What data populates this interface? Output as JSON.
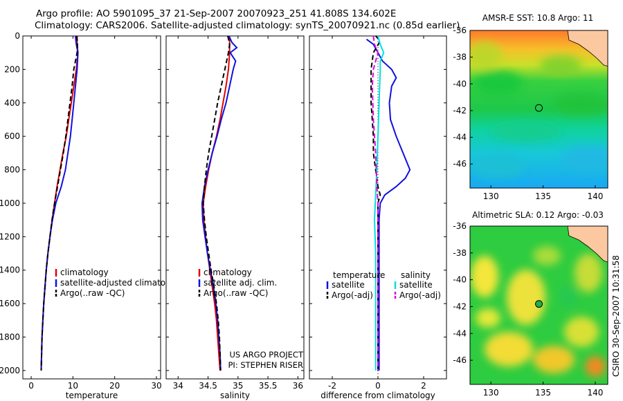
{
  "title": {
    "line1": "Argo profile: AO 5901095_37 21-Sep-2007 20070923_251 41.808S 134.602E",
    "line2": "Climatology: CARS2006. Satellite-adjusted climatology: synTS_20070921.nc (0.85d earlier)"
  },
  "side_label": "CSIRO 30-Sep-2007 10:31:58",
  "colors": {
    "red": "#e00000",
    "blue": "#1010e0",
    "black": "#000000",
    "cyan": "#00e0e0",
    "magenta": "#e000e0"
  },
  "chart_data": [
    {
      "type": "line",
      "xlabel": "temperature",
      "xlim": [
        -2,
        31
      ],
      "ylim": [
        0,
        2050
      ],
      "y_reversed": true,
      "xticks": [
        0,
        10,
        20,
        30
      ],
      "yticks": [
        0,
        200,
        400,
        600,
        800,
        1000,
        1200,
        1400,
        1600,
        1800,
        2000
      ],
      "series": [
        {
          "name": "climatology",
          "color": "red",
          "dash": "solid",
          "points": [
            [
              11,
              0
            ],
            [
              11,
              50
            ],
            [
              11.2,
              100
            ],
            [
              10.8,
              200
            ],
            [
              10.2,
              300
            ],
            [
              9.6,
              400
            ],
            [
              9.0,
              500
            ],
            [
              8.4,
              600
            ],
            [
              7.6,
              700
            ],
            [
              6.9,
              800
            ],
            [
              6.2,
              900
            ],
            [
              5.6,
              1000
            ],
            [
              5.0,
              1100
            ],
            [
              4.5,
              1200
            ],
            [
              4.0,
              1300
            ],
            [
              3.6,
              1400
            ],
            [
              3.3,
              1500
            ],
            [
              3.0,
              1600
            ],
            [
              2.8,
              1700
            ],
            [
              2.6,
              1800
            ],
            [
              2.5,
              1900
            ],
            [
              2.4,
              2000
            ]
          ]
        },
        {
          "name": "satellite-adjusted climatology",
          "color": "blue",
          "dash": "solid",
          "points": [
            [
              10.6,
              0
            ],
            [
              10.8,
              50
            ],
            [
              11.2,
              100
            ],
            [
              11.0,
              200
            ],
            [
              10.6,
              300
            ],
            [
              10.2,
              400
            ],
            [
              9.8,
              500
            ],
            [
              9.4,
              600
            ],
            [
              8.8,
              700
            ],
            [
              8.2,
              800
            ],
            [
              7.2,
              900
            ],
            [
              5.9,
              1000
            ],
            [
              5.1,
              1100
            ],
            [
              4.5,
              1200
            ],
            [
              4.0,
              1300
            ],
            [
              3.6,
              1400
            ],
            [
              3.3,
              1500
            ],
            [
              3.0,
              1600
            ],
            [
              2.8,
              1700
            ],
            [
              2.6,
              1800
            ],
            [
              2.5,
              1900
            ],
            [
              2.4,
              2000
            ]
          ]
        },
        {
          "name": "Argo(..raw -QC)",
          "color": "black",
          "dash": "dashed",
          "points": [
            [
              10.9,
              0
            ],
            [
              11.1,
              50
            ],
            [
              11.0,
              100
            ],
            [
              10.2,
              200
            ],
            [
              9.8,
              300
            ],
            [
              9.3,
              400
            ],
            [
              8.8,
              500
            ],
            [
              8.3,
              600
            ],
            [
              7.7,
              700
            ],
            [
              7.0,
              800
            ],
            [
              6.3,
              900
            ],
            [
              5.6,
              1000
            ],
            [
              5.0,
              1100
            ],
            [
              4.5,
              1200
            ],
            [
              4.0,
              1300
            ],
            [
              3.6,
              1400
            ],
            [
              3.3,
              1500
            ],
            [
              3.0,
              1600
            ],
            [
              2.8,
              1700
            ],
            [
              2.6,
              1800
            ],
            [
              2.5,
              1900
            ],
            [
              2.4,
              2000
            ]
          ]
        }
      ],
      "legend": {
        "placement": "lower-center",
        "entries": [
          "climatology",
          "satellite-adjusted climatology",
          "Argo(..raw -QC)"
        ]
      }
    },
    {
      "type": "line",
      "xlabel": "salinity",
      "xlim": [
        33.8,
        36.1
      ],
      "ylim": [
        0,
        2050
      ],
      "y_reversed": true,
      "xticks": [
        34,
        34.5,
        35,
        35.5,
        36
      ],
      "series": [
        {
          "name": "climatology",
          "color": "red",
          "dash": "solid",
          "points": [
            [
              34.86,
              0
            ],
            [
              34.86,
              100
            ],
            [
              34.84,
              200
            ],
            [
              34.8,
              300
            ],
            [
              34.75,
              400
            ],
            [
              34.7,
              500
            ],
            [
              34.64,
              600
            ],
            [
              34.57,
              700
            ],
            [
              34.51,
              800
            ],
            [
              34.46,
              900
            ],
            [
              34.42,
              1000
            ],
            [
              34.43,
              1100
            ],
            [
              34.46,
              1200
            ],
            [
              34.49,
              1300
            ],
            [
              34.53,
              1400
            ],
            [
              34.57,
              1500
            ],
            [
              34.61,
              1600
            ],
            [
              34.64,
              1700
            ],
            [
              34.66,
              1800
            ],
            [
              34.68,
              1900
            ],
            [
              34.7,
              2000
            ]
          ]
        },
        {
          "name": "satellite adj. clim.",
          "color": "blue",
          "dash": "solid",
          "points": [
            [
              34.85,
              0
            ],
            [
              34.9,
              40
            ],
            [
              34.98,
              70
            ],
            [
              34.87,
              100
            ],
            [
              34.96,
              150
            ],
            [
              34.92,
              200
            ],
            [
              34.86,
              300
            ],
            [
              34.8,
              400
            ],
            [
              34.72,
              500
            ],
            [
              34.65,
              600
            ],
            [
              34.57,
              700
            ],
            [
              34.5,
              800
            ],
            [
              34.44,
              900
            ],
            [
              34.4,
              1000
            ],
            [
              34.41,
              1100
            ],
            [
              34.45,
              1200
            ],
            [
              34.49,
              1300
            ],
            [
              34.54,
              1400
            ],
            [
              34.59,
              1500
            ],
            [
              34.63,
              1600
            ],
            [
              34.66,
              1700
            ],
            [
              34.68,
              1800
            ],
            [
              34.7,
              1900
            ],
            [
              34.71,
              2000
            ]
          ]
        },
        {
          "name": "Argo(..raw -QC)",
          "color": "black",
          "dash": "dashed",
          "points": [
            [
              34.83,
              0
            ],
            [
              34.86,
              50
            ],
            [
              34.84,
              100
            ],
            [
              34.78,
              200
            ],
            [
              34.72,
              300
            ],
            [
              34.66,
              400
            ],
            [
              34.61,
              500
            ],
            [
              34.56,
              600
            ],
            [
              34.51,
              700
            ],
            [
              34.47,
              800
            ],
            [
              34.44,
              900
            ],
            [
              34.42,
              1000
            ],
            [
              34.44,
              1100
            ],
            [
              34.47,
              1200
            ],
            [
              34.51,
              1300
            ],
            [
              34.55,
              1400
            ],
            [
              34.6,
              1500
            ],
            [
              34.64,
              1600
            ],
            [
              34.67,
              1700
            ],
            [
              34.69,
              1800
            ],
            [
              34.7,
              1900
            ],
            [
              34.71,
              2000
            ]
          ]
        }
      ],
      "legend": {
        "placement": "lower-center",
        "entries": [
          "climatology",
          "satellite adj. clim.",
          "Argo(..raw -QC)"
        ]
      },
      "annotation": [
        "US ARGO PROJECT",
        "PI: STEPHEN RISER"
      ]
    },
    {
      "type": "line",
      "xlabel": "difference from climatology",
      "xlim": [
        -3,
        3
      ],
      "ylim": [
        0,
        2050
      ],
      "y_reversed": true,
      "xticks": [
        -2,
        0,
        2
      ],
      "series": [
        {
          "name": "temperature satellite",
          "color": "blue",
          "dash": "solid",
          "points": [
            [
              -0.5,
              20
            ],
            [
              -0.2,
              50
            ],
            [
              0.0,
              100
            ],
            [
              0.2,
              150
            ],
            [
              0.6,
              200
            ],
            [
              0.8,
              250
            ],
            [
              0.6,
              300
            ],
            [
              0.5,
              400
            ],
            [
              0.55,
              500
            ],
            [
              0.8,
              600
            ],
            [
              1.1,
              700
            ],
            [
              1.4,
              800
            ],
            [
              1.2,
              850
            ],
            [
              0.8,
              900
            ],
            [
              0.3,
              950
            ],
            [
              0.1,
              1000
            ],
            [
              0.05,
              1100
            ],
            [
              0.05,
              1300
            ],
            [
              0.05,
              1600
            ],
            [
              0.05,
              2000
            ]
          ]
        },
        {
          "name": "temperature Argo(-adj)",
          "color": "black",
          "dash": "dashed",
          "points": [
            [
              -0.1,
              0
            ],
            [
              0.1,
              30
            ],
            [
              -0.2,
              100
            ],
            [
              -0.3,
              200
            ],
            [
              -0.3,
              400
            ],
            [
              -0.2,
              600
            ],
            [
              -0.2,
              700
            ],
            [
              -0.1,
              800
            ],
            [
              0.0,
              900
            ],
            [
              0.1,
              950
            ],
            [
              0.0,
              1000
            ],
            [
              0.0,
              1200
            ],
            [
              0.0,
              1600
            ],
            [
              0.0,
              2000
            ]
          ]
        },
        {
          "name": "salinity satellite",
          "color": "cyan",
          "dash": "solid",
          "points": [
            [
              0.0,
              0
            ],
            [
              0.1,
              50
            ],
            [
              0.25,
              100
            ],
            [
              0.1,
              150
            ],
            [
              0.1,
              200
            ],
            [
              0.05,
              400
            ],
            [
              0.0,
              600
            ],
            [
              -0.05,
              800
            ],
            [
              -0.1,
              950
            ],
            [
              -0.15,
              1100
            ],
            [
              -0.1,
              1300
            ],
            [
              -0.1,
              1500
            ],
            [
              -0.1,
              1700
            ],
            [
              -0.1,
              1900
            ],
            [
              -0.1,
              2000
            ]
          ]
        },
        {
          "name": "salinity Argo(-adj)",
          "color": "magenta",
          "dash": "dashed",
          "points": [
            [
              -0.2,
              0
            ],
            [
              -0.15,
              50
            ],
            [
              0.0,
              100
            ],
            [
              -0.1,
              150
            ],
            [
              -0.2,
              200
            ],
            [
              -0.25,
              300
            ],
            [
              -0.2,
              500
            ],
            [
              -0.1,
              700
            ],
            [
              -0.05,
              900
            ],
            [
              0.0,
              1000
            ],
            [
              0.0,
              1200
            ],
            [
              0.0,
              1600
            ],
            [
              0.0,
              2000
            ]
          ]
        }
      ],
      "legend": {
        "placement": "lower-center",
        "group_titles": [
          "temperature",
          "salinity"
        ],
        "entries": [
          "satellite",
          "Argo(-adj)",
          "satellite",
          "Argo(-adj)"
        ]
      }
    },
    {
      "type": "heatmap",
      "title": "AMSR-E SST: 10.8 Argo: 11",
      "xlim": [
        128,
        141.2
      ],
      "ylim": [
        -47.8,
        -36
      ],
      "xticks": [
        130,
        135,
        140
      ],
      "yticks": [
        -36,
        -38,
        -40,
        -42,
        -44,
        -46
      ],
      "marker": {
        "lon": 134.6,
        "lat": -41.8
      }
    },
    {
      "type": "heatmap",
      "title": "Altimetric SLA: 0.12 Argo: -0.03",
      "xlim": [
        128,
        141.2
      ],
      "ylim": [
        -47.8,
        -36
      ],
      "xticks": [
        130,
        135,
        140
      ],
      "yticks": [
        -36,
        -38,
        -40,
        -42,
        -44,
        -46
      ],
      "marker": {
        "lon": 134.6,
        "lat": -41.8
      }
    }
  ]
}
